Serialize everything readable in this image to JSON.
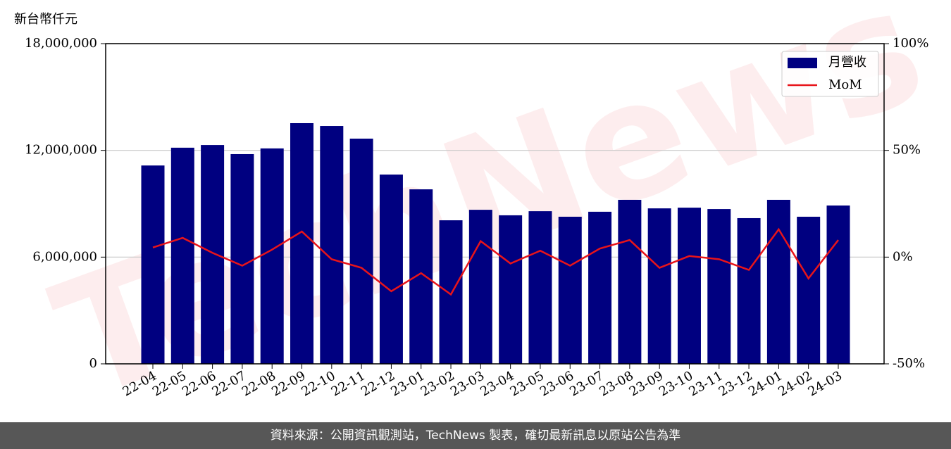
{
  "chart_data": {
    "type": "bar-line",
    "watermark": "TechNews",
    "y_label": "新台幣仟元",
    "categories": [
      "22-04",
      "22-05",
      "22-06",
      "22-07",
      "22-08",
      "22-09",
      "22-10",
      "22-11",
      "22-12",
      "23-01",
      "23-02",
      "23-03",
      "23-04",
      "23-05",
      "23-06",
      "23-07",
      "23-08",
      "23-09",
      "23-10",
      "23-11",
      "23-12",
      "24-01",
      "24-02",
      "24-03"
    ],
    "series": [
      {
        "name": "月營收",
        "color": "#000080",
        "axis": "y",
        "values": [
          11150000,
          12150000,
          12300000,
          11790000,
          12110000,
          13530000,
          13370000,
          12660000,
          10640000,
          9810000,
          8070000,
          8660000,
          8350000,
          8580000,
          8270000,
          8550000,
          9220000,
          8740000,
          8780000,
          8700000,
          8190000,
          9220000,
          8270000,
          8900000
        ]
      },
      {
        "name": "MoM",
        "color": "#e8141a",
        "axis": "y2",
        "values": [
          4.5,
          9,
          2,
          -4,
          3.5,
          12,
          -1,
          -5,
          -16,
          -7.5,
          -17.5,
          7.5,
          -3,
          3,
          -4,
          4,
          8,
          -5,
          0.5,
          -1,
          -6,
          13,
          -10,
          8
        ]
      }
    ],
    "ylim": [
      0,
      18000000
    ],
    "yticks": [
      0,
      {
        "value": 6000000,
        "label": "6,000,000"
      },
      {
        "value": 12000000,
        "label": "12,000,000"
      },
      {
        "value": 18000000,
        "label": "18,000,000"
      }
    ],
    "y2lim": [
      -50,
      100
    ],
    "y2ticks": [
      {
        "value": -50,
        "label": "-50%"
      },
      {
        "value": 0,
        "label": "0%"
      },
      {
        "value": 50,
        "label": "50%"
      },
      {
        "value": 100,
        "label": "100%"
      }
    ],
    "grid": true,
    "legend": "upper right"
  },
  "footer": "資料來源：公開資訊觀測站，TechNews 製表，確切最新訊息以原站公告為準"
}
